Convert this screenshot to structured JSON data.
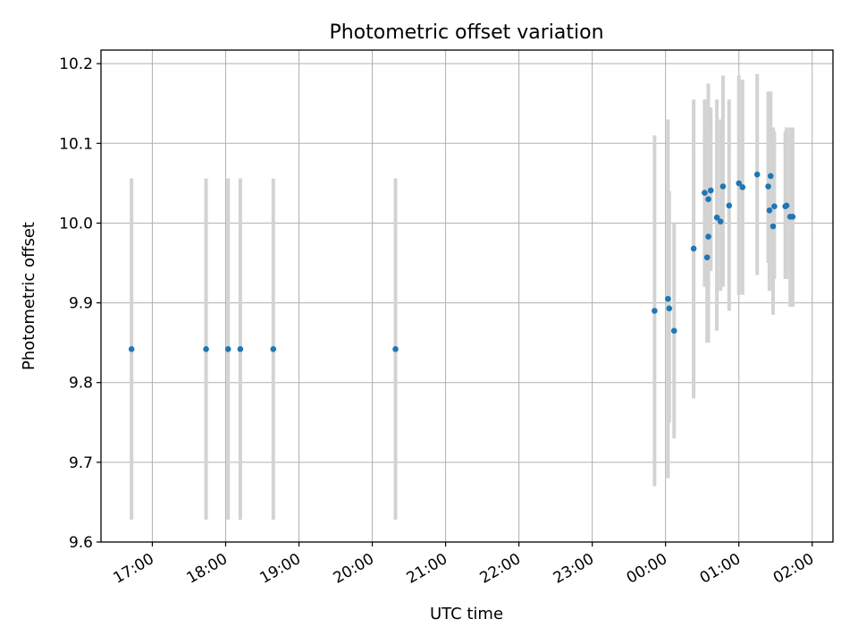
{
  "chart_data": {
    "type": "scatter",
    "title": "Photometric offset variation",
    "xlabel": "UTC time",
    "ylabel": "Photometric offset",
    "x_unit": "time of day (UTC, date rollover after 00:00)",
    "xticks": [
      "17:00",
      "18:00",
      "19:00",
      "20:00",
      "21:00",
      "22:00",
      "23:00",
      "00:00",
      "01:00",
      "02:00"
    ],
    "xlim": [
      "16:18",
      "02:17"
    ],
    "ylim": [
      9.6,
      10.217
    ],
    "yticks": [
      "9.6",
      "9.7",
      "9.8",
      "9.9",
      "10.0",
      "10.1",
      "10.2"
    ],
    "grid": true,
    "marker_color": "#1f77b4",
    "errorbar_color": "#d3d3d3",
    "points": [
      {
        "x": "16:43",
        "y": 9.842,
        "ylow": 9.628,
        "yhigh": 10.056
      },
      {
        "x": "17:44",
        "y": 9.842,
        "ylow": 9.628,
        "yhigh": 10.056
      },
      {
        "x": "18:02",
        "y": 9.842,
        "ylow": 9.628,
        "yhigh": 10.056
      },
      {
        "x": "18:12",
        "y": 9.842,
        "ylow": 9.628,
        "yhigh": 10.056
      },
      {
        "x": "18:39",
        "y": 9.842,
        "ylow": 9.628,
        "yhigh": 10.056
      },
      {
        "x": "20:19",
        "y": 9.842,
        "ylow": 9.628,
        "yhigh": 10.056
      },
      {
        "x": "23:51",
        "y": 9.89,
        "ylow": 9.67,
        "yhigh": 10.11
      },
      {
        "x": "00:02",
        "y": 9.905,
        "ylow": 9.68,
        "yhigh": 10.13
      },
      {
        "x": "00:03",
        "y": 9.893,
        "ylow": 9.75,
        "yhigh": 10.04
      },
      {
        "x": "00:07",
        "y": 9.865,
        "ylow": 9.73,
        "yhigh": 10.0
      },
      {
        "x": "00:23",
        "y": 9.968,
        "ylow": 9.78,
        "yhigh": 10.155
      },
      {
        "x": "00:32",
        "y": 10.038,
        "ylow": 9.92,
        "yhigh": 10.155
      },
      {
        "x": "00:34",
        "y": 9.957,
        "ylow": 9.85,
        "yhigh": 10.115
      },
      {
        "x": "00:35",
        "y": 9.983,
        "ylow": 9.85,
        "yhigh": 10.175
      },
      {
        "x": "00:35",
        "y": 10.03,
        "ylow": 9.92,
        "yhigh": 10.14
      },
      {
        "x": "00:37",
        "y": 10.041,
        "ylow": 9.94,
        "yhigh": 10.145
      },
      {
        "x": "00:42",
        "y": 10.007,
        "ylow": 9.865,
        "yhigh": 10.155
      },
      {
        "x": "00:45",
        "y": 10.002,
        "ylow": 9.915,
        "yhigh": 10.13
      },
      {
        "x": "00:47",
        "y": 10.046,
        "ylow": 9.92,
        "yhigh": 10.185
      },
      {
        "x": "00:52",
        "y": 10.022,
        "ylow": 9.89,
        "yhigh": 10.155
      },
      {
        "x": "01:00",
        "y": 10.05,
        "ylow": 9.91,
        "yhigh": 10.185
      },
      {
        "x": "01:03",
        "y": 10.045,
        "ylow": 9.91,
        "yhigh": 10.18
      },
      {
        "x": "01:15",
        "y": 10.061,
        "ylow": 9.935,
        "yhigh": 10.187
      },
      {
        "x": "01:24",
        "y": 10.046,
        "ylow": 9.95,
        "yhigh": 10.165
      },
      {
        "x": "01:25",
        "y": 10.016,
        "ylow": 9.915,
        "yhigh": 10.12
      },
      {
        "x": "01:26",
        "y": 10.059,
        "ylow": 9.95,
        "yhigh": 10.165
      },
      {
        "x": "01:28",
        "y": 9.996,
        "ylow": 9.885,
        "yhigh": 10.12
      },
      {
        "x": "01:29",
        "y": 10.021,
        "ylow": 9.93,
        "yhigh": 10.115
      },
      {
        "x": "01:38",
        "y": 10.021,
        "ylow": 9.93,
        "yhigh": 10.115
      },
      {
        "x": "01:39",
        "y": 10.022,
        "ylow": 9.93,
        "yhigh": 10.12
      },
      {
        "x": "01:42",
        "y": 10.008,
        "ylow": 9.895,
        "yhigh": 10.12
      },
      {
        "x": "01:44",
        "y": 10.008,
        "ylow": 9.895,
        "yhigh": 10.12
      }
    ]
  }
}
